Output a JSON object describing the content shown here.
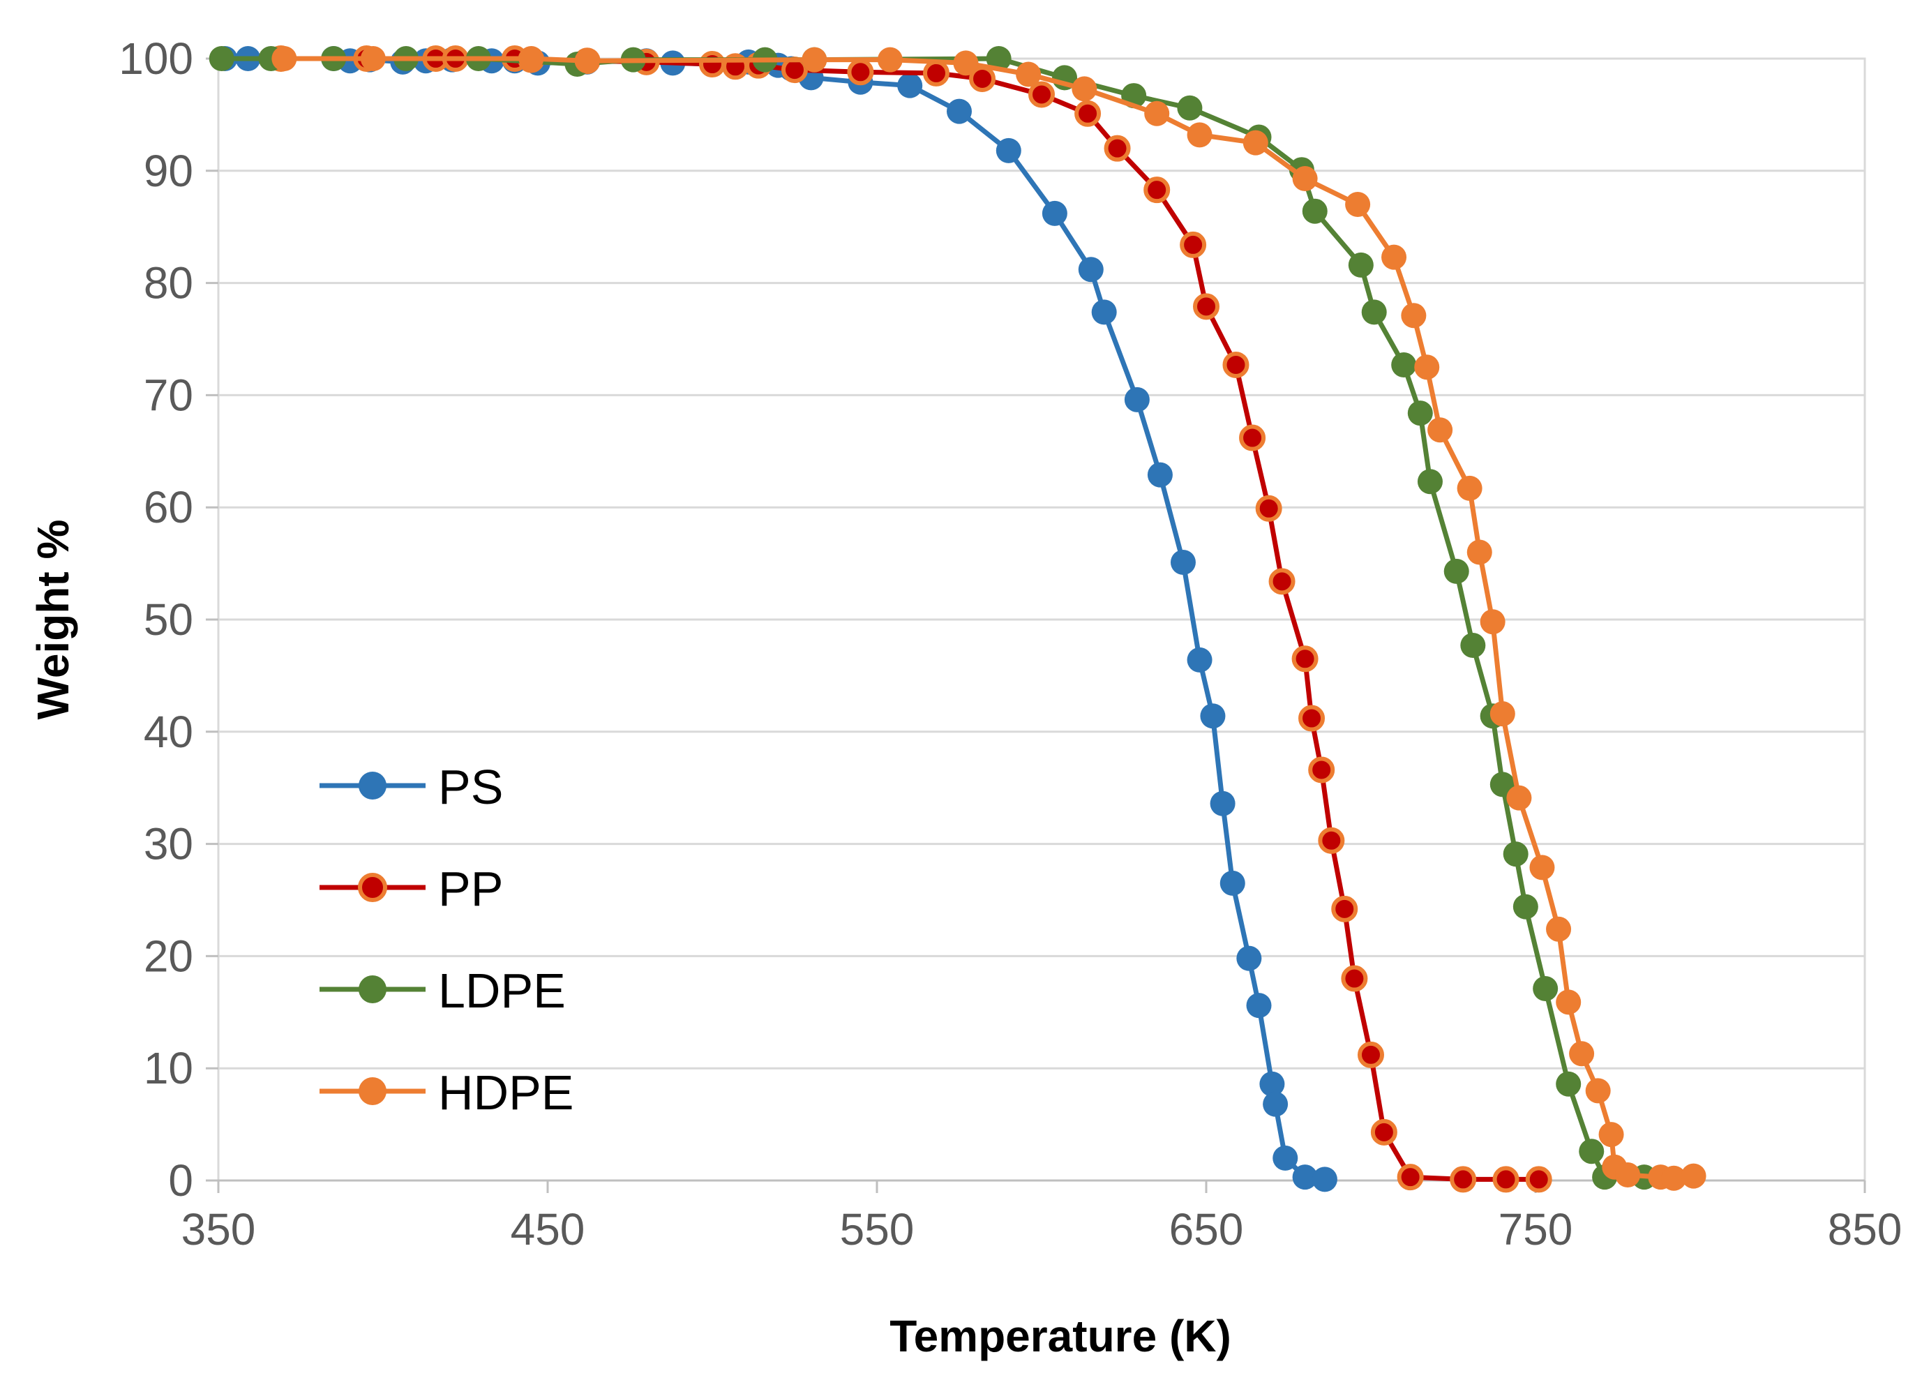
{
  "chart_data": {
    "type": "line",
    "title": "",
    "xlabel": "Temperature (K)",
    "ylabel": "Weight %",
    "xlim": [
      350,
      850
    ],
    "ylim": [
      0,
      100
    ],
    "x_ticks": [
      "350",
      "450",
      "550",
      "650",
      "750",
      "850"
    ],
    "y_ticks": [
      "0",
      "10",
      "20",
      "30",
      "40",
      "50",
      "60",
      "70",
      "80",
      "90",
      "100"
    ],
    "grid": "horizontal",
    "legend_position": "lower-left",
    "series": [
      {
        "name": "PS",
        "color": "#2E75B6",
        "marker_fill": "#2E75B6",
        "x": [
          352,
          359,
          369,
          385,
          390,
          396,
          406,
          413,
          421,
          433,
          440,
          447,
          462,
          480,
          488,
          500,
          511,
          520,
          524,
          530,
          545,
          560,
          575,
          590,
          604,
          615,
          619,
          629,
          636,
          643,
          648,
          652,
          655,
          658,
          663,
          666,
          670,
          671,
          674,
          680,
          686
        ],
        "y": [
          100,
          100,
          100,
          100,
          99.8,
          99.9,
          99.7,
          99.8,
          99.9,
          99.8,
          99.8,
          99.6,
          99.7,
          99.8,
          99.6,
          99.5,
          99.7,
          99.4,
          99.1,
          98.3,
          97.9,
          97.6,
          95.3,
          91.8,
          86.2,
          81.2,
          77.4,
          69.6,
          62.9,
          55.1,
          46.4,
          41.4,
          33.6,
          26.5,
          19.8,
          15.6,
          8.6,
          6.8,
          2.0,
          0.3,
          0.1
        ]
      },
      {
        "name": "PP",
        "color": "#C00000",
        "marker_fill": "#C00000",
        "marker_edge": "#ED7D31",
        "x": [
          369,
          395,
          416,
          422,
          440,
          445,
          462,
          480,
          500,
          507,
          514,
          525,
          545,
          568,
          582,
          600,
          614,
          623,
          635,
          646,
          650,
          659,
          664,
          669,
          673,
          680,
          682,
          685,
          688,
          692,
          695,
          700,
          704,
          712,
          728,
          741,
          751
        ],
        "y": [
          100,
          100,
          100,
          100,
          100,
          99.9,
          99.8,
          99.7,
          99.5,
          99.3,
          99.4,
          99.0,
          98.8,
          98.7,
          98.2,
          96.8,
          95.1,
          92.0,
          88.3,
          83.4,
          77.9,
          72.7,
          66.2,
          59.9,
          53.4,
          46.5,
          41.2,
          36.6,
          30.3,
          24.2,
          18.0,
          11.2,
          4.3,
          0.3,
          0.1,
          0.1,
          0.1
        ]
      },
      {
        "name": "LDPE",
        "color": "#548235",
        "marker_fill": "#548235",
        "x": [
          351,
          366,
          385,
          407,
          429,
          459,
          476,
          516,
          531,
          587,
          607,
          628,
          645,
          666,
          679,
          683,
          697,
          701,
          710,
          715,
          718,
          726,
          731,
          737,
          740,
          744,
          747,
          753,
          760,
          767,
          771,
          783
        ],
        "y": [
          100,
          100,
          100,
          100,
          100,
          99.5,
          99.9,
          99.9,
          99.9,
          100,
          98.3,
          96.7,
          95.6,
          93.0,
          90.1,
          86.4,
          81.6,
          77.4,
          72.7,
          68.4,
          62.3,
          54.3,
          47.7,
          41.4,
          35.3,
          29.1,
          24.4,
          17.1,
          8.6,
          2.6,
          0.3,
          0.3
        ]
      },
      {
        "name": "HDPE",
        "color": "#ED7D31",
        "marker_fill": "#ED7D31",
        "x": [
          370,
          397,
          445,
          462,
          531,
          554,
          577,
          596,
          613,
          635,
          648,
          665,
          680,
          696,
          707,
          713,
          717,
          721,
          730,
          733,
          737,
          740,
          745,
          752,
          757,
          760,
          764,
          769,
          773,
          774,
          778,
          788,
          792,
          798
        ],
        "y": [
          100,
          100,
          100,
          99.8,
          99.9,
          99.9,
          99.6,
          98.6,
          97.3,
          95.1,
          93.2,
          92.5,
          89.3,
          87.0,
          82.3,
          77.1,
          72.5,
          66.9,
          61.7,
          56.0,
          49.8,
          41.6,
          34.1,
          27.9,
          22.4,
          15.9,
          11.3,
          8.0,
          4.1,
          1.2,
          0.5,
          0.3,
          0.2,
          0.4
        ]
      }
    ]
  }
}
